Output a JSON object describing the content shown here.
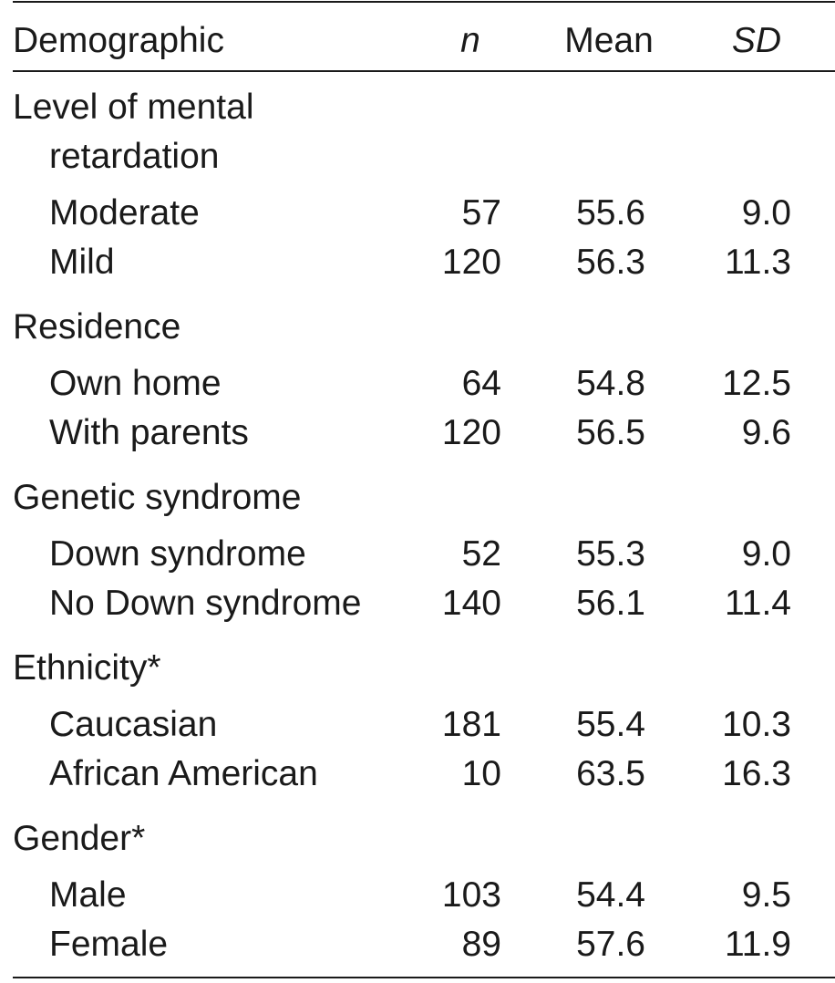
{
  "table": {
    "header": [
      "Demographic",
      "n",
      "Mean",
      "SD"
    ],
    "groups": [
      {
        "label": "Level of mental retardation",
        "rows": [
          [
            "Moderate",
            "57",
            "55.6",
            "9.0"
          ],
          [
            "Mild",
            "120",
            "56.3",
            "11.3"
          ]
        ]
      },
      {
        "label": "Residence",
        "rows": [
          [
            "Own home",
            "64",
            "54.8",
            "12.5"
          ],
          [
            "With parents",
            "120",
            "56.5",
            "9.6"
          ]
        ]
      },
      {
        "label": "Genetic syndrome",
        "rows": [
          [
            "Down syndrome",
            "52",
            "55.3",
            "9.0"
          ],
          [
            "No Down syndrome",
            "140",
            "56.1",
            "11.4"
          ]
        ]
      },
      {
        "label": "Ethnicity*",
        "rows": [
          [
            "Caucasian",
            "181",
            "55.4",
            "10.3"
          ],
          [
            "African American",
            "10",
            "63.5",
            "16.3"
          ]
        ]
      },
      {
        "label": "Gender*",
        "rows": [
          [
            "Male",
            "103",
            "54.4",
            "9.5"
          ],
          [
            "Female",
            "89",
            "57.6",
            "11.9"
          ]
        ]
      }
    ]
  }
}
